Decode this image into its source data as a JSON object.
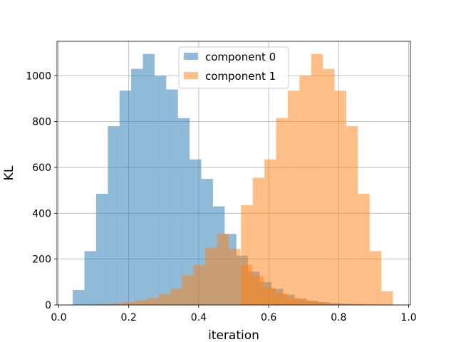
{
  "chart_data": {
    "type": "bar",
    "subtype": "histogram-overlay",
    "title": "",
    "xlabel": "iteration",
    "ylabel": "KL",
    "xlim": [
      -0.005,
      1.005
    ],
    "ylim": [
      0,
      1150
    ],
    "xticks": [
      "0.0",
      "0.2",
      "0.4",
      "0.6",
      "0.8",
      "1.0"
    ],
    "xtick_values": [
      0.0,
      0.2,
      0.4,
      0.6,
      0.8,
      1.0
    ],
    "yticks": [
      "0",
      "200",
      "400",
      "600",
      "800",
      "1000"
    ],
    "ytick_values": [
      0,
      200,
      400,
      600,
      800,
      1000
    ],
    "grid": true,
    "legend_position": "upper center",
    "series": [
      {
        "name": "component 0",
        "color": "#1f77b4",
        "alpha": 0.5,
        "bin_edges": [
          0.04,
          0.0734,
          0.1068,
          0.1402,
          0.1736,
          0.207,
          0.2404,
          0.2738,
          0.3072,
          0.3406,
          0.374,
          0.4074,
          0.4408,
          0.4742,
          0.5076,
          0.541,
          0.5744,
          0.6078,
          0.6412,
          0.6746,
          0.708,
          0.7414,
          0.7748,
          0.8082,
          0.8416,
          0.875,
          0.9084,
          0.9418
        ],
        "values": [
          65,
          235,
          485,
          780,
          935,
          1030,
          1095,
          1000,
          940,
          815,
          635,
          550,
          430,
          310,
          215,
          145,
          100,
          70,
          45,
          28,
          18,
          12,
          8,
          5,
          3,
          2,
          1
        ]
      },
      {
        "name": "component 1",
        "color": "#ff7f0e",
        "alpha": 0.5,
        "bin_edges": [
          0.0516,
          0.085,
          0.1184,
          0.1518,
          0.1852,
          0.2186,
          0.252,
          0.2854,
          0.3188,
          0.3522,
          0.3856,
          0.419,
          0.4524,
          0.4858,
          0.5192,
          0.5526,
          0.586,
          0.6194,
          0.6528,
          0.6862,
          0.722,
          0.7554,
          0.7888,
          0.8222,
          0.8556,
          0.889,
          0.9224,
          0.9558
        ],
        "values": [
          1,
          2,
          4,
          7,
          12,
          20,
          30,
          48,
          70,
          130,
          175,
          250,
          310,
          245,
          175,
          125,
          75,
          50,
          30,
          20,
          12,
          5,
          3,
          2,
          1,
          1,
          1
        ]
      },
      {
        "name": "",
        "color": "#ff7f0e",
        "alpha": 0.5,
        "role": "upper-mode",
        "bin_edges": [
          0.521,
          0.5544,
          0.5878,
          0.6212,
          0.6546,
          0.688,
          0.7214,
          0.7548,
          0.7882,
          0.8216,
          0.855,
          0.8884,
          0.9218,
          0.9552
        ],
        "values": [
          435,
          555,
          635,
          815,
          935,
          1000,
          1095,
          1030,
          935,
          780,
          485,
          235,
          60
        ]
      }
    ]
  }
}
